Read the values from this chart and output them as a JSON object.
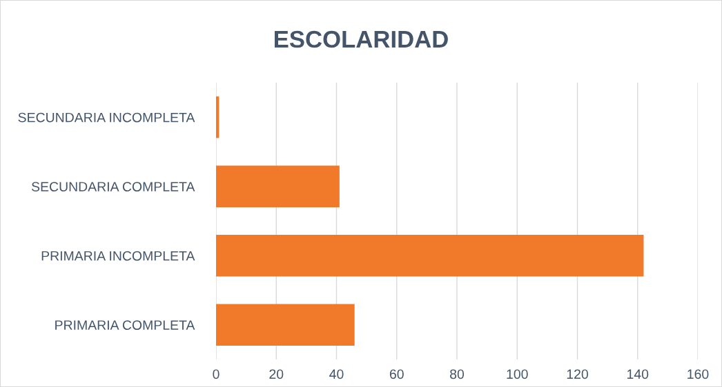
{
  "chart_data": {
    "type": "bar",
    "title": "ESCOLARIDAD",
    "orientation": "horizontal",
    "categories": [
      "SECUNDARIA INCOMPLETA",
      "SECUNDARIA COMPLETA",
      "PRIMARIA INCOMPLETA",
      "PRIMARIA COMPLETA"
    ],
    "values": [
      1,
      41,
      142,
      46
    ],
    "color": "#f07a2a",
    "xlim": [
      0,
      160
    ],
    "xticks": [
      0,
      20,
      40,
      60,
      80,
      100,
      120,
      140,
      160
    ],
    "grid": "x",
    "legend": false
  }
}
